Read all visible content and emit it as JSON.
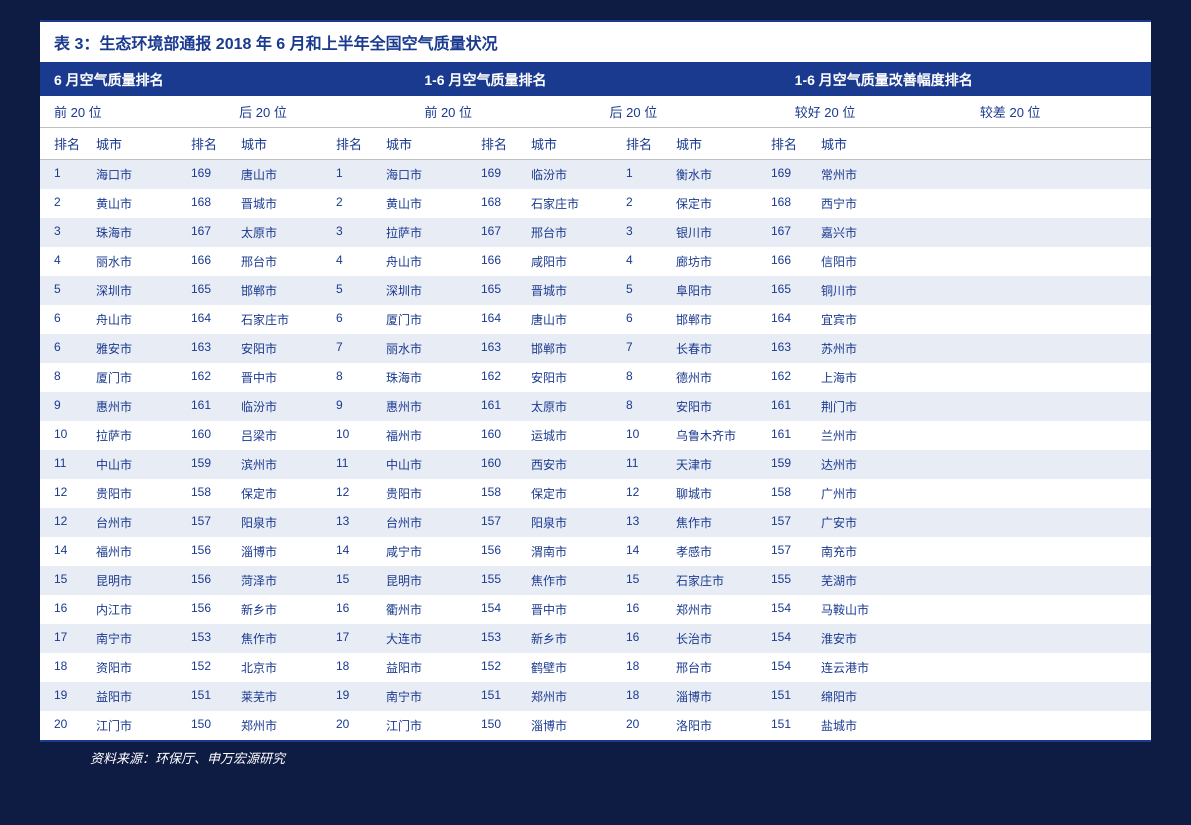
{
  "title": "表 3：生态环境部通报 2018 年 6 月和上半年全国空气质量状况",
  "source": "资料来源：环保厅、申万宏源研究",
  "colors": {
    "page_bg": "#0e1b43",
    "table_bg": "#ffffff",
    "header_bg": "#1a3a8f",
    "text_primary": "#1a3a8f",
    "text_white": "#ffffff",
    "row_stripe": "#e8ecf5"
  },
  "sections": [
    {
      "label": "6 月空气质量排名"
    },
    {
      "label": "1-6 月空气质量排名"
    },
    {
      "label": "1-6 月空气质量改善幅度排名"
    }
  ],
  "subheaders": [
    "前 20 位",
    "后 20 位",
    "前 20 位",
    "后 20 位",
    "较好 20 位",
    "较差 20 位"
  ],
  "col_headers": [
    "排名",
    "城市",
    "排名",
    "城市",
    "排名",
    "城市",
    "排名",
    "城市",
    "排名",
    "城市",
    "排名",
    "城市"
  ],
  "rows": [
    [
      "1",
      "海口市",
      "169",
      "唐山市",
      "1",
      "海口市",
      "169",
      "临汾市",
      "1",
      "衡水市",
      "169",
      "常州市"
    ],
    [
      "2",
      "黄山市",
      "168",
      "晋城市",
      "2",
      "黄山市",
      "168",
      "石家庄市",
      "2",
      "保定市",
      "168",
      "西宁市"
    ],
    [
      "3",
      "珠海市",
      "167",
      "太原市",
      "3",
      "拉萨市",
      "167",
      "邢台市",
      "3",
      "银川市",
      "167",
      "嘉兴市"
    ],
    [
      "4",
      "丽水市",
      "166",
      "邢台市",
      "4",
      "舟山市",
      "166",
      "咸阳市",
      "4",
      "廊坊市",
      "166",
      "信阳市"
    ],
    [
      "5",
      "深圳市",
      "165",
      "邯郸市",
      "5",
      "深圳市",
      "165",
      "晋城市",
      "5",
      "阜阳市",
      "165",
      "铜川市"
    ],
    [
      "6",
      "舟山市",
      "164",
      "石家庄市",
      "6",
      "厦门市",
      "164",
      "唐山市",
      "6",
      "邯郸市",
      "164",
      "宜宾市"
    ],
    [
      "6",
      "雅安市",
      "163",
      "安阳市",
      "7",
      "丽水市",
      "163",
      "邯郸市",
      "7",
      "长春市",
      "163",
      "苏州市"
    ],
    [
      "8",
      "厦门市",
      "162",
      "晋中市",
      "8",
      "珠海市",
      "162",
      "安阳市",
      "8",
      "德州市",
      "162",
      "上海市"
    ],
    [
      "9",
      "惠州市",
      "161",
      "临汾市",
      "9",
      "惠州市",
      "161",
      "太原市",
      "8",
      "安阳市",
      "161",
      "荆门市"
    ],
    [
      "10",
      "拉萨市",
      "160",
      "吕梁市",
      "10",
      "福州市",
      "160",
      "运城市",
      "10",
      "乌鲁木齐市",
      "161",
      "兰州市"
    ],
    [
      "11",
      "中山市",
      "159",
      "滨州市",
      "11",
      "中山市",
      "160",
      "西安市",
      "11",
      "天津市",
      "159",
      "达州市"
    ],
    [
      "12",
      "贵阳市",
      "158",
      "保定市",
      "12",
      "贵阳市",
      "158",
      "保定市",
      "12",
      "聊城市",
      "158",
      "广州市"
    ],
    [
      "12",
      "台州市",
      "157",
      "阳泉市",
      "13",
      "台州市",
      "157",
      "阳泉市",
      "13",
      "焦作市",
      "157",
      "广安市"
    ],
    [
      "14",
      "福州市",
      "156",
      "淄博市",
      "14",
      "咸宁市",
      "156",
      "渭南市",
      "14",
      "孝感市",
      "157",
      "南充市"
    ],
    [
      "15",
      "昆明市",
      "156",
      "菏泽市",
      "15",
      "昆明市",
      "155",
      "焦作市",
      "15",
      "石家庄市",
      "155",
      "芜湖市"
    ],
    [
      "16",
      "内江市",
      "156",
      "新乡市",
      "16",
      "衢州市",
      "154",
      "晋中市",
      "16",
      "郑州市",
      "154",
      "马鞍山市"
    ],
    [
      "17",
      "南宁市",
      "153",
      "焦作市",
      "17",
      "大连市",
      "153",
      "新乡市",
      "16",
      "长治市",
      "154",
      "淮安市"
    ],
    [
      "18",
      "资阳市",
      "152",
      "北京市",
      "18",
      "益阳市",
      "152",
      "鹤壁市",
      "18",
      "邢台市",
      "154",
      "连云港市"
    ],
    [
      "19",
      "益阳市",
      "151",
      "莱芜市",
      "19",
      "南宁市",
      "151",
      "郑州市",
      "18",
      "淄博市",
      "151",
      "绵阳市"
    ],
    [
      "20",
      "江门市",
      "150",
      "郑州市",
      "20",
      "江门市",
      "150",
      "淄博市",
      "20",
      "洛阳市",
      "151",
      "盐城市"
    ]
  ]
}
